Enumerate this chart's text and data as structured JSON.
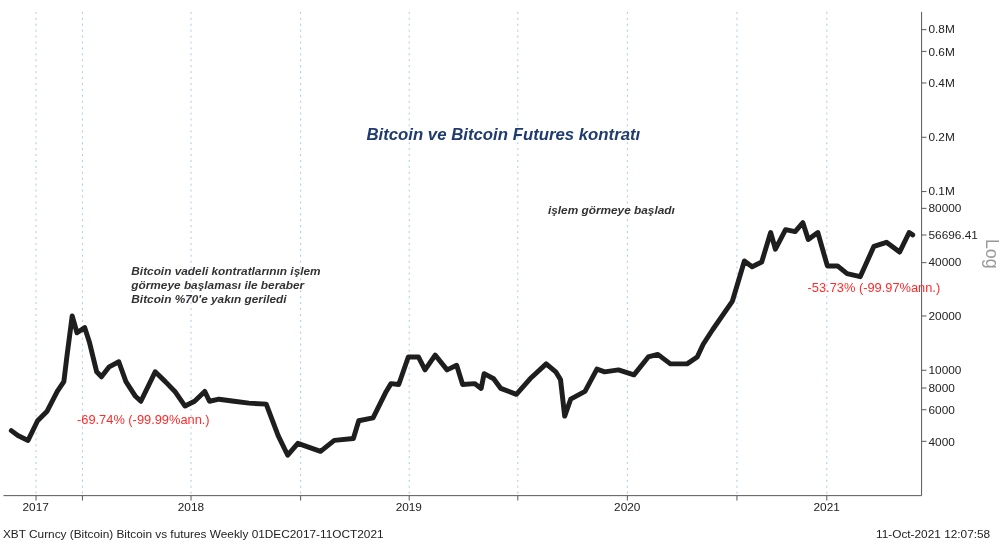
{
  "chart_data": {
    "type": "line",
    "title": "Bitcoin ve Bitcoin Futures kontratı",
    "ylabel": "Log",
    "x": [
      "2017-09-05",
      "2017-09-16",
      "2017-10-03",
      "2017-10-19",
      "2017-11-04",
      "2017-11-21",
      "2017-12-02",
      "2017-12-07",
      "2017-12-16",
      "2017-12-24",
      "2018-01-06",
      "2018-01-14",
      "2018-01-26",
      "2018-02-03",
      "2018-02-16",
      "2018-03-04",
      "2018-03-16",
      "2018-04-01",
      "2018-04-10",
      "2018-05-04",
      "2018-05-21",
      "2018-06-06",
      "2018-06-23",
      "2018-07-09",
      "2018-07-26",
      "2018-08-03",
      "2018-08-19",
      "2018-09-13",
      "2018-10-08",
      "2018-11-06",
      "2018-11-26",
      "2018-12-12",
      "2018-12-29",
      "2019-02-05",
      "2019-02-28",
      "2019-04-01",
      "2019-04-10",
      "2019-05-04",
      "2019-05-26",
      "2019-06-03",
      "2019-06-16",
      "2019-07-02",
      "2019-07-19",
      "2019-07-30",
      "2019-08-16",
      "2019-09-05",
      "2019-09-21",
      "2019-10-01",
      "2019-10-21",
      "2019-11-01",
      "2019-11-06",
      "2019-11-22",
      "2019-12-04",
      "2019-12-30",
      "2020-01-22",
      "2020-02-18",
      "2020-03-05",
      "2020-03-13",
      "2020-03-20",
      "2020-03-30",
      "2020-04-23",
      "2020-05-13",
      "2020-05-26",
      "2020-06-18",
      "2020-07-14",
      "2020-08-07",
      "2020-08-23",
      "2020-09-13",
      "2020-10-11",
      "2020-10-28",
      "2020-11-07",
      "2020-11-23",
      "2020-12-26",
      "2021-01-15",
      "2021-01-28",
      "2021-02-13",
      "2021-02-28",
      "2021-03-08",
      "2021-03-25",
      "2021-04-10",
      "2021-04-23",
      "2021-05-02",
      "2021-05-18",
      "2021-06-03",
      "2021-06-20",
      "2021-07-06",
      "2021-07-28",
      "2021-08-20",
      "2021-09-10",
      "2021-10-02",
      "2021-10-18",
      "2021-10-24"
    ],
    "series": [
      {
        "color": "#1e1e1e",
        "values": [
          4580,
          4300,
          4040,
          5200,
          5880,
          7580,
          8600,
          11800,
          20000,
          16100,
          17200,
          14200,
          9750,
          9150,
          10400,
          11100,
          8600,
          7120,
          6680,
          9750,
          8600,
          7580,
          6280,
          6680,
          7580,
          6680,
          6860,
          6680,
          6520,
          6440,
          4300,
          3340,
          3890,
          3510,
          4040,
          4140,
          5200,
          5400,
          7580,
          8380,
          8280,
          11800,
          11800,
          10000,
          12100,
          10000,
          10600,
          8280,
          8380,
          7880,
          9520,
          8920,
          7880,
          7300,
          8920,
          10800,
          9750,
          8820,
          5520,
          6860,
          7580,
          10100,
          9750,
          10000,
          9380,
          11800,
          12200,
          10800,
          10800,
          11800,
          13900,
          16800,
          24200,
          40500,
          37600,
          40000,
          58400,
          47100,
          60600,
          59100,
          66200,
          53400,
          58400,
          38000,
          38000,
          34400,
          33100,
          48900,
          51500,
          45400,
          58400,
          56696.41
        ]
      }
    ],
    "log": true,
    "ylim": [
      2000,
      1000000
    ],
    "yticks": [
      4000,
      6000,
      8000,
      10000,
      20000,
      40000,
      56696.41,
      80000,
      {
        "value": 100000,
        "label": "0.1M"
      },
      {
        "value": 200000,
        "label": "0.2M"
      },
      {
        "value": 400000,
        "label": "0.4M"
      },
      {
        "value": 600000,
        "label": "0.6M"
      },
      {
        "value": 800000,
        "label": "0.8M"
      }
    ],
    "xlim": [
      "2017-08-22",
      "2021-11-07"
    ],
    "xticks": [
      {
        "value": "2017-10-15",
        "label": "2017"
      },
      {
        "value": "2018-01-01",
        "label": null
      },
      {
        "value": "2018-07-02",
        "label": "2018"
      },
      {
        "value": "2019-01-01",
        "label": null
      },
      {
        "value": "2019-07-02",
        "label": "2019"
      },
      {
        "value": "2020-01-01",
        "label": null
      },
      {
        "value": "2020-07-02",
        "label": "2020"
      },
      {
        "value": "2021-01-01",
        "label": null
      },
      {
        "value": "2021-06-01",
        "label": "2021"
      }
    ],
    "grid": "x",
    "annotations": [
      "Bitcoin vadeli kontratlarının işlem\ngörmeye başlaması ile beraber\nBitcoin %70'e yakın geriledi",
      "işlem görmeye başladı",
      "-69.74% (-99.99%ann.)",
      "-53.73% (-99.97%ann.)",
      "XBT Curncy (Bitcoin) Bitcoin vs futures  Weekly 01DEC2017-11OCT2021",
      "11-Oct-2021 12:07:58"
    ]
  }
}
